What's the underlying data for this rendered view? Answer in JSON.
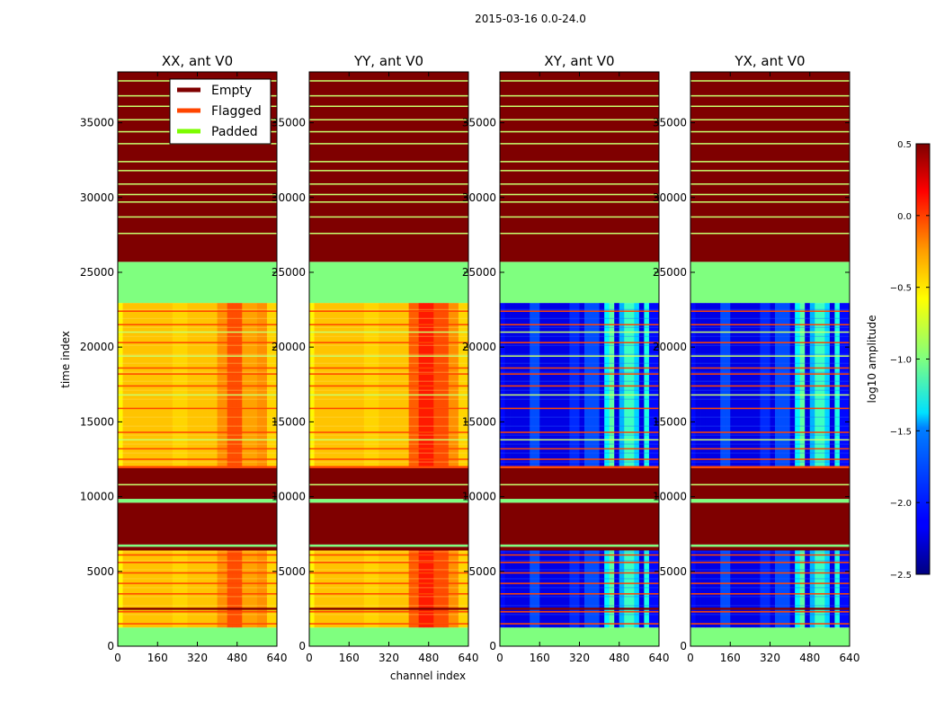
{
  "chart_data": {
    "type": "heatmap",
    "title": "2015-03-16 0.0-24.0",
    "xlabel": "channel index",
    "ylabel": "time index",
    "xlim": [
      0,
      640
    ],
    "ylim": [
      0,
      38400
    ],
    "x_ticks": [
      0,
      160,
      320,
      480,
      640
    ],
    "x_tick_labels": [
      "0",
      "160",
      "320",
      "480",
      "640"
    ],
    "y_ticks": [
      0,
      5000,
      10000,
      15000,
      20000,
      25000,
      30000,
      35000
    ],
    "y_tick_labels": [
      "0",
      "5000",
      "10000",
      "15000",
      "20000",
      "25000",
      "30000",
      "35000"
    ],
    "panels": [
      {
        "name": "XX",
        "title": "XX, ant V0",
        "level": "high",
        "valid_ranges": [
          [
            1250,
            6400
          ],
          [
            12050,
            22950
          ]
        ]
      },
      {
        "name": "YY",
        "title": "YY, ant V0",
        "level": "high",
        "valid_ranges": [
          [
            1250,
            6400
          ],
          [
            12050,
            22950
          ]
        ]
      },
      {
        "name": "XY",
        "title": "XY, ant V0",
        "level": "low",
        "valid_ranges": [
          [
            1250,
            6400
          ],
          [
            12050,
            22950
          ]
        ]
      },
      {
        "name": "YX",
        "title": "YX, ant V0",
        "level": "low",
        "valid_ranges": [
          [
            1250,
            6400
          ],
          [
            12050,
            22950
          ]
        ]
      }
    ],
    "regions": [
      {
        "from": 0,
        "to": 1250,
        "state": "Padded"
      },
      {
        "from": 1250,
        "to": 6400,
        "state": "Data"
      },
      {
        "from": 6400,
        "to": 6650,
        "state": "Empty"
      },
      {
        "from": 6650,
        "to": 6800,
        "state": "Padded"
      },
      {
        "from": 6800,
        "to": 9600,
        "state": "Empty"
      },
      {
        "from": 9600,
        "to": 9850,
        "state": "Padded"
      },
      {
        "from": 9850,
        "to": 11900,
        "state": "Empty"
      },
      {
        "from": 11900,
        "to": 12050,
        "state": "Flagged"
      },
      {
        "from": 12050,
        "to": 22950,
        "state": "Data"
      },
      {
        "from": 22950,
        "to": 25700,
        "state": "Padded"
      },
      {
        "from": 25700,
        "to": 38400,
        "state": "Empty"
      }
    ],
    "empty_lines": [
      37800,
      36800,
      36100,
      35200,
      34400,
      33600,
      32400,
      31800,
      30900,
      30200,
      29700,
      28700,
      27600
    ],
    "flagged_lines": [
      1500,
      2300,
      3500,
      4200,
      4900,
      5600,
      6100,
      12500,
      13200,
      14300,
      15900,
      17400,
      18200,
      18600,
      20300,
      21500,
      22400
    ],
    "padded_lines": [
      10800,
      13800,
      16800,
      19400,
      21000
    ],
    "legend": {
      "position": "upper-right of first panel",
      "entries": [
        {
          "label": "Empty",
          "color": "#7f0000"
        },
        {
          "label": "Flagged",
          "color": "#ff4500"
        },
        {
          "label": "Padded",
          "color": "#7cfc00"
        }
      ]
    },
    "colorbar": {
      "label": "log10 amplitude",
      "range": [
        -2.5,
        0.5
      ],
      "ticks": [
        -2.5,
        -2.0,
        -1.5,
        -1.0,
        -0.5,
        0.0,
        0.5
      ],
      "tick_labels": [
        "−2.5",
        "−2.0",
        "−1.5",
        "−1.0",
        "−0.5",
        "0.0",
        "0.5"
      ],
      "colormap": "jet"
    },
    "colors": {
      "empty": "#7f0000",
      "padded": "#7fff7f",
      "flagged": "#ff4500",
      "padded_line": "#c8ff6e"
    }
  }
}
